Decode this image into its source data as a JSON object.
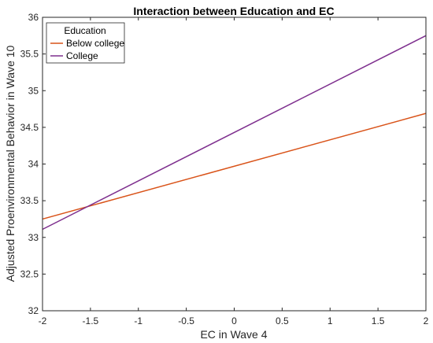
{
  "chart_data": {
    "type": "line",
    "title": "Interaction between Education and EC",
    "xlabel": "EC in Wave 4",
    "ylabel": "Adjusted Proenvironmental Behavior in Wave 10",
    "xlim": [
      -2,
      2
    ],
    "ylim": [
      32,
      36
    ],
    "xticks": [
      -2,
      -1.5,
      -1,
      -0.5,
      0,
      0.5,
      1,
      1.5,
      2
    ],
    "xtick_labels": [
      "-2",
      "-1.5",
      "-1",
      "-0.5",
      "0",
      "0.5",
      "1",
      "1.5",
      "2"
    ],
    "yticks": [
      32,
      32.5,
      33,
      33.5,
      34,
      34.5,
      35,
      35.5,
      36
    ],
    "ytick_labels": [
      "32",
      "32.5",
      "33",
      "33.5",
      "34",
      "34.5",
      "35",
      "35.5",
      "36"
    ],
    "grid": false,
    "legend": {
      "title": "Education",
      "placement": "top-left"
    },
    "series": [
      {
        "name": "Below college",
        "color": "#D95319",
        "x": [
          -2,
          2
        ],
        "y": [
          33.25,
          34.69
        ]
      },
      {
        "name": "College",
        "color": "#7E2F8E",
        "x": [
          -2,
          2
        ],
        "y": [
          33.11,
          35.75
        ]
      }
    ]
  }
}
